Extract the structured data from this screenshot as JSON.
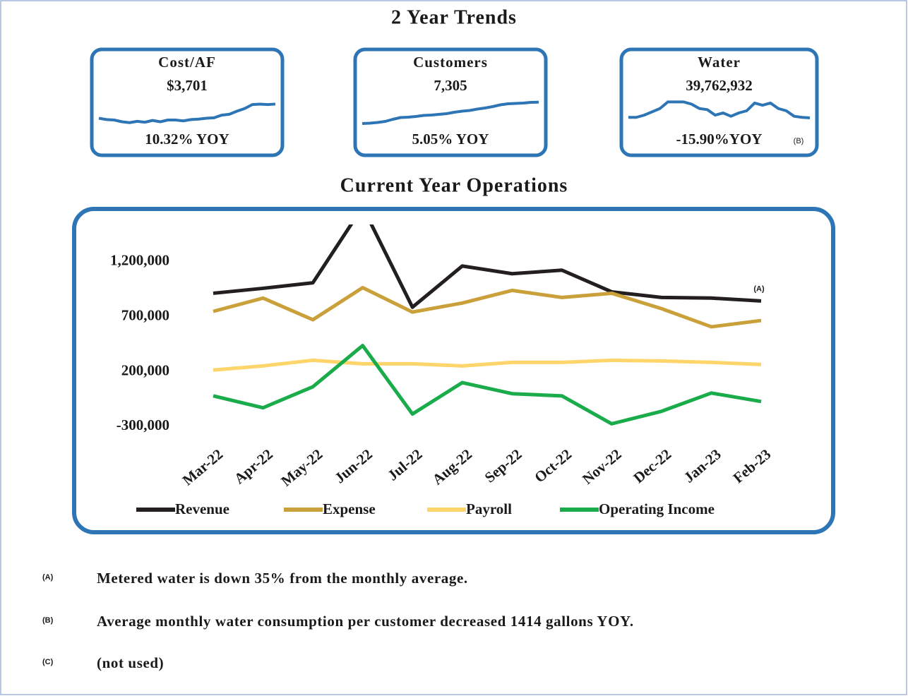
{
  "title": "2 Year Trends",
  "cards": [
    {
      "title": "Cost/AF",
      "value": "$3,701",
      "yoy": "10.32% YOY",
      "color": "#2e75b6",
      "values": [
        3380,
        3350,
        3340,
        3300,
        3280,
        3310,
        3290,
        3330,
        3300,
        3340,
        3340,
        3320,
        3350,
        3360,
        3380,
        3390,
        3450,
        3470,
        3540,
        3600,
        3690,
        3700,
        3690,
        3701
      ],
      "ylim": [
        3100,
        3900
      ]
    },
    {
      "title": "Customers",
      "value": "7,305",
      "yoy": "5.05% YOY",
      "color": "#2e75b6",
      "values": [
        6700,
        6710,
        6730,
        6760,
        6820,
        6870,
        6880,
        6900,
        6930,
        6940,
        6960,
        6980,
        7020,
        7050,
        7070,
        7110,
        7140,
        7180,
        7230,
        7260,
        7270,
        7280,
        7300,
        7305
      ],
      "ylim": [
        6500,
        7500
      ]
    },
    {
      "title": "Water",
      "value": "39,762,932",
      "yoy": "-15.90%YOY",
      "note": "(B)",
      "color": "#2e75b6",
      "values": [
        40000000,
        40000000,
        41000000,
        42500000,
        44000000,
        47000000,
        47000000,
        47000000,
        46000000,
        44000000,
        43500000,
        41000000,
        42000000,
        40500000,
        42000000,
        43000000,
        46500000,
        45500000,
        46500000,
        44000000,
        43000000,
        40500000,
        40000000,
        39762932
      ],
      "ylim": [
        34000000,
        50000000
      ]
    }
  ],
  "chart_data": {
    "type": "line",
    "title": "Current Year  Operations",
    "categories": [
      "Mar-22",
      "Apr-22",
      "May-22",
      "Jun-22",
      "Jul-22",
      "Aug-22",
      "Sep-22",
      "Oct-22",
      "Nov-22",
      "Dec-22",
      "Jan-23",
      "Feb-23"
    ],
    "series": [
      {
        "name": "Revenue",
        "color": "#231f20",
        "values": [
          914000,
          959000,
          1009000,
          1700000,
          787000,
          1162000,
          1092000,
          1124000,
          927000,
          876000,
          870000,
          844000
        ]
      },
      {
        "name": "Expense",
        "color": "#c9a03a",
        "values": [
          749000,
          870000,
          673000,
          965000,
          743000,
          825000,
          940000,
          876000,
          914000,
          774000,
          609000,
          666000
        ]
      },
      {
        "name": "Payroll",
        "color": "#fdd56b",
        "values": [
          215000,
          253000,
          304000,
          272000,
          272000,
          253000,
          285000,
          285000,
          304000,
          298000,
          285000,
          266000
        ]
      },
      {
        "name": "Operating Income",
        "color": "#1aab4b",
        "values": [
          -20000,
          -128000,
          63000,
          438000,
          -185000,
          101000,
          0,
          -20000,
          -274000,
          -160000,
          6000,
          -71000
        ]
      }
    ],
    "ylim": [
      -400000,
      1540000
    ],
    "yticks": [
      {
        "value": -300000,
        "label": "-300,000"
      },
      {
        "value": 200000,
        "label": "200,000"
      },
      {
        "value": 700000,
        "label": "700,000"
      },
      {
        "value": 1200000,
        "label": "1,200,000"
      }
    ],
    "annotation": "(A)",
    "legend": "bottom"
  },
  "footnotes": [
    {
      "marker": "(A)",
      "text": "Metered water is down 35% from the monthly average."
    },
    {
      "marker": "(B)",
      "text": "Average monthly water consumption per customer decreased 1414 gallons YOY."
    },
    {
      "marker": "(C)",
      "text": "(not used)"
    }
  ]
}
